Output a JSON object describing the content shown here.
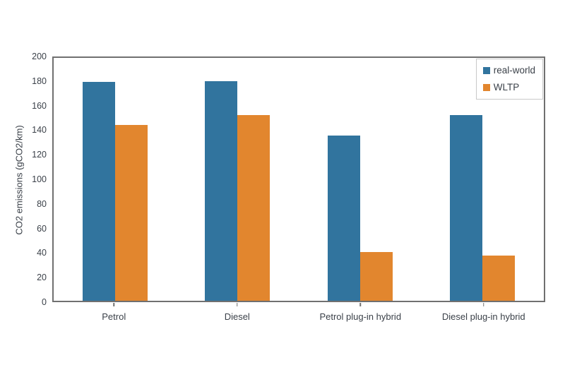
{
  "chart_data": {
    "type": "bar",
    "title": "",
    "xlabel": "",
    "ylabel": "CO2 emissions (gCO2/km)",
    "categories": [
      "Petrol",
      "Diesel",
      "Petrol plug-in hybrid",
      "Diesel plug-in hybrid"
    ],
    "series": [
      {
        "name": "real-world",
        "color": "#31749e",
        "values": [
          180,
          181,
          136,
          153
        ]
      },
      {
        "name": "WLTP",
        "color": "#e2862e",
        "values": [
          145,
          153,
          40,
          37
        ]
      }
    ],
    "ylim": [
      0,
      200
    ],
    "yticks": [
      0,
      20,
      40,
      60,
      80,
      100,
      120,
      140,
      160,
      180,
      200
    ],
    "grid": false,
    "legend_position": "top-right"
  },
  "styles": {
    "axis_color": "#707070",
    "text_color": "#3b4149",
    "legend_border_color": "#c9c9c9",
    "background_color": "#ffffff"
  }
}
